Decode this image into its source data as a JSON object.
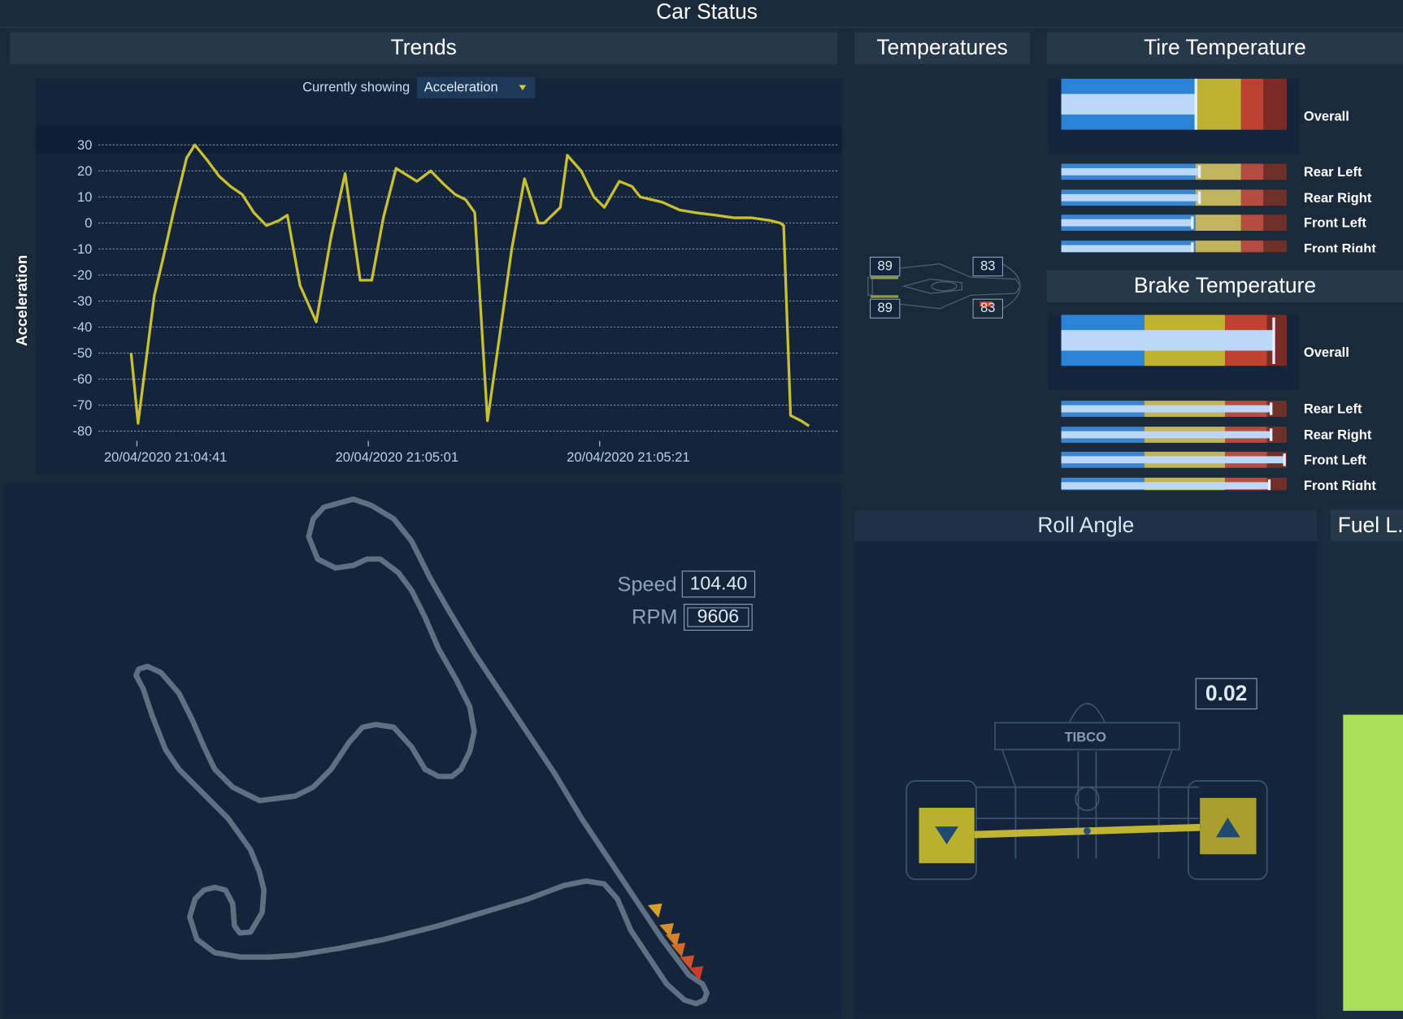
{
  "title": "Car Status",
  "headers": {
    "trends": "Trends",
    "temperatures": "Temperatures",
    "tire": "Tire Temperature",
    "brake": "Brake Temperature",
    "roll": "Roll Angle",
    "fuel": "Fuel L..."
  },
  "trends": {
    "currently_showing_label": "Currently showing",
    "selected_metric": "Acceleration",
    "dropdown_icon": "caret-down-icon"
  },
  "chart_data": {
    "type": "line",
    "ylabel": "Acceleration",
    "ylim": [
      -80,
      30
    ],
    "yticks": [
      "30",
      "20",
      "10",
      "0",
      "-10",
      "-20",
      "-30",
      "-40",
      "-50",
      "-60",
      "-70",
      "-80"
    ],
    "xticks": [
      "20/04/2020 21:04:41",
      "20/04/2020 21:05:01",
      "20/04/2020 21:05:21"
    ],
    "grid": true,
    "line_color": "#c8c030",
    "series": [
      {
        "x": [
          "21:04:40.5",
          "21:04:41.1",
          "21:04:42.5",
          "21:04:43.3",
          "21:04:44.2",
          "21:04:45.3",
          "21:04:46.0",
          "21:04:47.1",
          "21:04:48.1",
          "21:04:49.1",
          "21:04:50.1",
          "21:04:51.1",
          "21:04:52.2",
          "21:04:53.3",
          "21:04:54.0",
          "21:04:55.1",
          "21:04:56.5",
          "21:04:57.8",
          "21:04:59.0",
          "21:05:00.3",
          "21:05:01.3",
          "21:05:02.3",
          "21:05:03.4",
          "21:05:05.2",
          "21:05:06.4",
          "21:05:07.5",
          "21:05:08.5",
          "21:05:09.4",
          "21:05:10.2",
          "21:05:11.3",
          "21:05:12.3",
          "21:05:13.4",
          "21:05:14.5",
          "21:05:15.7",
          "21:05:16.2",
          "21:05:17.6",
          "21:05:18.2",
          "21:05:19.4",
          "21:05:20.5",
          "21:05:21.4",
          "21:05:22.7",
          "21:05:23.8",
          "21:05:24.5",
          "21:05:26.4",
          "21:05:27.9",
          "21:05:29.2",
          "21:05:31.0",
          "21:05:32.6",
          "21:05:34.1",
          "21:05:35.7",
          "21:05:36.6",
          "21:05:36.9",
          "21:05:37.5",
          "21:05:38.4",
          "21:05:39.1"
        ],
        "y": [
          -50,
          -77,
          -28,
          -13,
          5,
          25,
          30,
          24,
          18,
          14,
          11,
          4,
          -1,
          1,
          3,
          -24,
          -38,
          -5,
          19,
          -22,
          -22,
          2,
          21,
          16,
          20,
          15,
          11,
          9,
          4,
          -76,
          -45,
          -10,
          17,
          0,
          0,
          6,
          26,
          20,
          10,
          6,
          16,
          14,
          10,
          8,
          5,
          4,
          3,
          2,
          2,
          1,
          0,
          -1,
          -74,
          -76,
          -78
        ]
      }
    ]
  },
  "temperatures": {
    "rear_left": "89",
    "front_left": "83",
    "rear_right": "89",
    "front_right": "83"
  },
  "tire": {
    "zones": [
      0.595,
      0.798,
      0.897
    ],
    "overall_label": "Overall",
    "overall_value": 0.595,
    "items": [
      {
        "label": "Rear Left",
        "value": 0.61
      },
      {
        "label": "Rear Right",
        "value": 0.61
      },
      {
        "label": "Front Left",
        "value": 0.58
      },
      {
        "label": "Front Right",
        "value": 0.58
      }
    ]
  },
  "brake": {
    "zones": [
      0.369,
      0.726,
      0.913
    ],
    "overall_label": "Overall",
    "overall_value": 0.94,
    "items": [
      {
        "label": "Rear Left",
        "value": 0.93
      },
      {
        "label": "Rear Right",
        "value": 0.93
      },
      {
        "label": "Front Left",
        "value": 0.99
      },
      {
        "label": "Front Right",
        "value": 0.92
      }
    ]
  },
  "colors": {
    "blue": "#2b83d8",
    "yellow": "#bfb232",
    "red": "#bf4132",
    "darkred": "#7a2c24",
    "blue_l": "#3a84d0",
    "yellow_l": "#c2b45c",
    "red_l": "#b44c40",
    "darkred_l": "#6e3028"
  },
  "track": {
    "speed_label": "Speed",
    "speed": "104.40",
    "rpm_label": "RPM",
    "rpm": "9606"
  },
  "roll": {
    "value": "0.02",
    "logo": "TIBCO"
  },
  "fuel": {
    "level": 0.65,
    "color": "#a8e05a"
  }
}
